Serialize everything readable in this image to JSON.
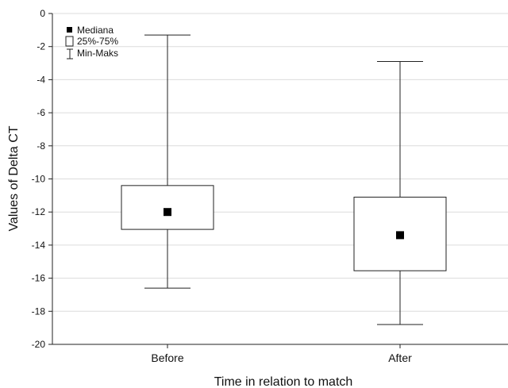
{
  "chart_data": {
    "type": "boxplot",
    "xlabel": "Time in relation to match",
    "ylabel": "Values of Delta CT",
    "ylim": [
      -20,
      0
    ],
    "yticks": [
      0,
      -2,
      -4,
      -6,
      -8,
      -10,
      -12,
      -14,
      -16,
      -18,
      -20
    ],
    "grid": true,
    "legend_position": "top-left",
    "legend": [
      {
        "label": "Mediana",
        "symbol": "filled-square"
      },
      {
        "label": "25%-75%",
        "symbol": "open-box"
      },
      {
        "label": "Min-Maks",
        "symbol": "whisker"
      }
    ],
    "categories": [
      "Before",
      "After"
    ],
    "boxes": [
      {
        "category": "Before",
        "min": -16.6,
        "q1": -13.05,
        "median": -12.0,
        "q3": -10.4,
        "max": -1.3
      },
      {
        "category": "After",
        "min": -18.8,
        "q1": -15.55,
        "median": -13.4,
        "q3": -11.1,
        "max": -2.9
      }
    ]
  }
}
